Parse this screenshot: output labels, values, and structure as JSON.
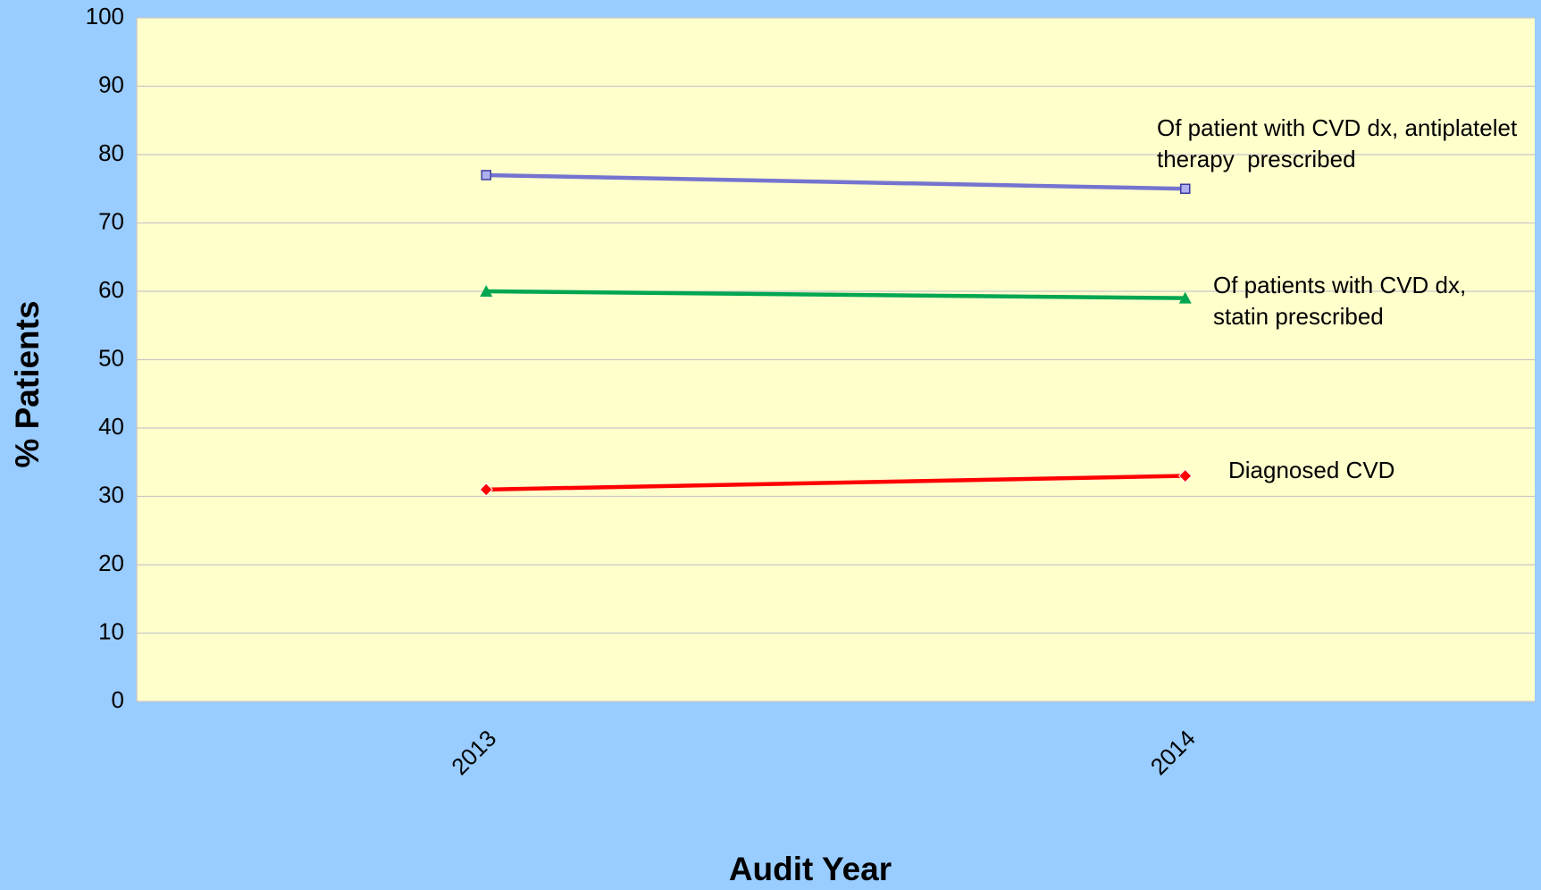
{
  "chart_data": {
    "type": "line",
    "categories": [
      "2013",
      "2014"
    ],
    "series": [
      {
        "name": "Of patient with CVD dx, antiplatelet therapy  prescribed",
        "color": "#7474d0",
        "marker": "square",
        "values": [
          77,
          75
        ]
      },
      {
        "name": "Of patients with CVD dx, statin prescribed",
        "color": "#00a651",
        "marker": "triangle",
        "values": [
          60,
          59
        ]
      },
      {
        "name": "Diagnosed CVD",
        "color": "#ff0000",
        "marker": "diamond",
        "values": [
          31,
          33
        ]
      }
    ],
    "x_label": "Audit Year",
    "y_label": "% Patients",
    "ylim": [
      0,
      100
    ],
    "yticks": [
      0,
      10,
      20,
      30,
      40,
      50,
      60,
      70,
      80,
      90,
      100
    ],
    "grid": true
  }
}
